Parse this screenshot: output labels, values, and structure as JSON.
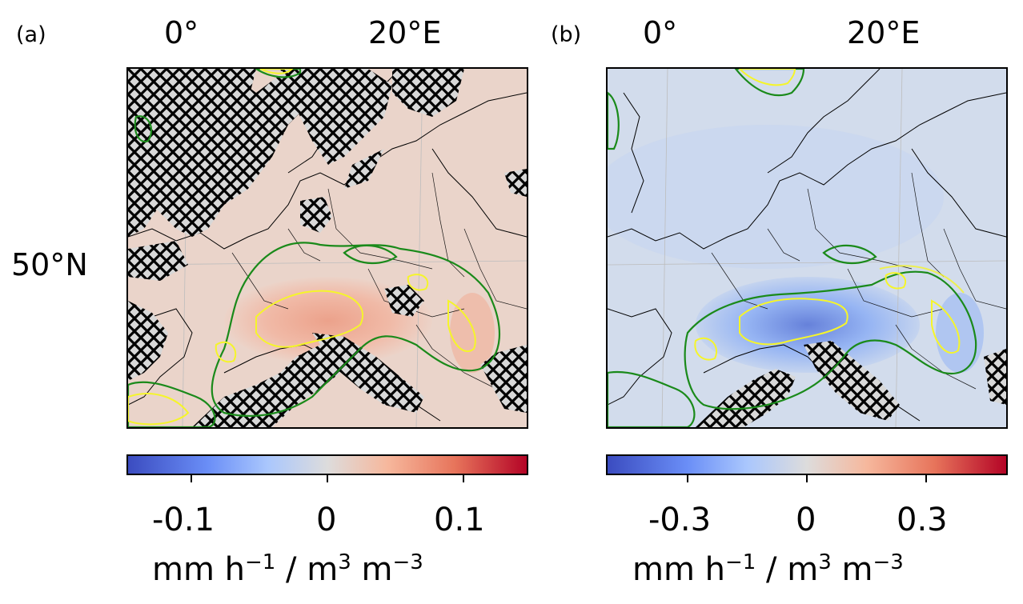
{
  "panels": [
    {
      "label": "(a)",
      "lon_ticks": [
        "0°",
        "20°E"
      ],
      "lat_ticks": [
        "50°N"
      ],
      "colorbar": {
        "ticks": [
          "-0.1",
          "0",
          "0.1"
        ],
        "tick_values": [
          -0.1,
          0,
          0.1
        ],
        "range": [
          -0.15,
          0.15
        ],
        "colormap": "coolwarm",
        "units": {
          "base": "mm h",
          "exp1": "−1",
          "mid": " / m",
          "exp2": "3",
          "mid2": " m",
          "exp3": "−3"
        }
      },
      "field_tone": "positive"
    },
    {
      "label": "(b)",
      "lon_ticks": [
        "0°",
        "20°E"
      ],
      "lat_ticks": [],
      "colorbar": {
        "ticks": [
          "-0.3",
          "0",
          "0.3"
        ],
        "tick_values": [
          -0.3,
          0,
          0.3
        ],
        "range": [
          -0.5,
          0.5
        ],
        "colormap": "coolwarm",
        "units": {
          "base": "mm h",
          "exp1": "−1",
          "mid": " / m",
          "exp2": "3",
          "mid2": " m",
          "exp3": "−3"
        }
      },
      "field_tone": "negative"
    }
  ],
  "colors": {
    "cmap_low": "#3b4cc0",
    "cmap_mid": "#dddcdc",
    "cmap_high": "#b40426",
    "contour_outer": "#1a8a1a",
    "contour_inner": "#f5f52a",
    "hatch": "#000000",
    "coast": "#000000"
  }
}
